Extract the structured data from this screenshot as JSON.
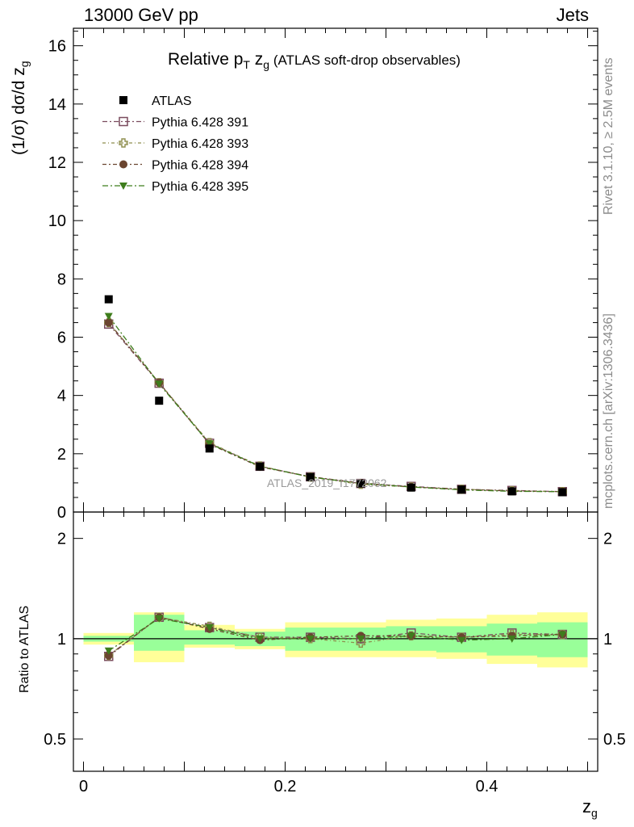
{
  "header": {
    "left": "13000 GeV pp",
    "right": "Jets"
  },
  "plot_title": {
    "main": "Relative p",
    "sub_T": "T",
    "mid": " z",
    "sub_g": "g",
    "paren": " (ATLAS soft-drop observables)"
  },
  "watermark": "ATLAS_2019_I1772062",
  "side_text": {
    "rivet": "Rivet 3.1.10, ≥ 2.5M events",
    "mcplots": "mcplots.cern.ch [arXiv:1306.3436]"
  },
  "ylabel_main": {
    "pre": "(1/σ) dσ/d z",
    "sub": "g"
  },
  "ylabel_ratio": "Ratio to ATLAS",
  "xlabel": {
    "main": "z",
    "sub": "g"
  },
  "legend": [
    {
      "name": "ATLAS",
      "marker": "filled-square",
      "color": "#000000"
    },
    {
      "name": "Pythia 6.428 391",
      "marker": "open-square",
      "color": "#7a4b5e"
    },
    {
      "name": "Pythia 6.428 393",
      "marker": "open-cross",
      "color": "#8e8e4e"
    },
    {
      "name": "Pythia 6.428 394",
      "marker": "filled-circle",
      "color": "#6b4530"
    },
    {
      "name": "Pythia 6.428 395",
      "marker": "filled-triangle-down",
      "color": "#3e7d1c"
    }
  ],
  "chart_data": {
    "type": "scatter",
    "x": [
      0.025,
      0.075,
      0.125,
      0.175,
      0.225,
      0.275,
      0.325,
      0.375,
      0.425,
      0.475
    ],
    "bin_edges": [
      0.0,
      0.05,
      0.1,
      0.15,
      0.2,
      0.25,
      0.3,
      0.35,
      0.4,
      0.45,
      0.5
    ],
    "xlim": [
      -0.01,
      0.51
    ],
    "ylim": [
      0,
      16.6
    ],
    "xticks": [
      0,
      0.2,
      0.4
    ],
    "xtick_labels": [
      "0",
      "0.2",
      "0.4"
    ],
    "yticks": [
      0,
      2,
      4,
      6,
      8,
      10,
      12,
      14,
      16
    ],
    "ytick_labels": [
      "0",
      "2",
      "4",
      "6",
      "8",
      "10",
      "12",
      "14",
      "16"
    ],
    "series": [
      {
        "name": "ATLAS",
        "values": [
          7.3,
          3.82,
          2.18,
          1.56,
          1.2,
          0.98,
          0.84,
          0.77,
          0.71,
          0.68
        ]
      },
      {
        "name": "Pythia 6.428 391",
        "values": [
          6.45,
          4.42,
          2.36,
          1.57,
          1.21,
          0.98,
          0.88,
          0.78,
          0.74,
          0.7
        ]
      },
      {
        "name": "Pythia 6.428 393",
        "values": [
          6.5,
          4.44,
          2.38,
          1.58,
          1.2,
          0.95,
          0.86,
          0.78,
          0.73,
          0.7
        ]
      },
      {
        "name": "Pythia 6.428 394",
        "values": [
          6.5,
          4.44,
          2.33,
          1.55,
          1.21,
          1.0,
          0.86,
          0.78,
          0.72,
          0.7
        ]
      },
      {
        "name": "Pythia 6.428 395",
        "values": [
          6.72,
          4.4,
          2.35,
          1.57,
          1.2,
          0.98,
          0.86,
          0.76,
          0.71,
          0.7
        ]
      }
    ],
    "ratio": {
      "ylabel": "Ratio to ATLAS",
      "ylim": [
        0.4,
        2.4
      ],
      "yticks": [
        0.5,
        1,
        2
      ],
      "ytick_labels": [
        "0.5",
        "1",
        "2"
      ],
      "band_stat": [
        [
          0.98,
          1.02
        ],
        [
          0.92,
          1.18
        ],
        [
          0.96,
          1.06
        ],
        [
          0.95,
          1.05
        ],
        [
          0.92,
          1.08
        ],
        [
          0.92,
          1.08
        ],
        [
          0.92,
          1.09
        ],
        [
          0.91,
          1.09
        ],
        [
          0.89,
          1.11
        ],
        [
          0.88,
          1.12
        ]
      ],
      "band_total": [
        [
          0.96,
          1.04
        ],
        [
          0.85,
          1.2
        ],
        [
          0.94,
          1.1
        ],
        [
          0.93,
          1.07
        ],
        [
          0.88,
          1.12
        ],
        [
          0.88,
          1.12
        ],
        [
          0.88,
          1.14
        ],
        [
          0.87,
          1.15
        ],
        [
          0.84,
          1.18
        ],
        [
          0.82,
          1.2
        ]
      ],
      "series": [
        {
          "name": "Pythia 6.428 391",
          "values": [
            0.885,
            1.16,
            1.08,
            1.01,
            1.01,
            1.0,
            1.04,
            1.01,
            1.04,
            1.03
          ]
        },
        {
          "name": "Pythia 6.428 393",
          "values": [
            0.89,
            1.16,
            1.09,
            1.01,
            1.0,
            0.97,
            1.02,
            1.01,
            1.03,
            1.03
          ]
        },
        {
          "name": "Pythia 6.428 394",
          "values": [
            0.89,
            1.16,
            1.07,
            0.99,
            1.01,
            1.02,
            1.02,
            1.01,
            1.02,
            1.03
          ]
        },
        {
          "name": "Pythia 6.428 395",
          "values": [
            0.92,
            1.15,
            1.08,
            1.0,
            1.0,
            1.0,
            1.02,
            0.99,
            1.0,
            1.03
          ]
        }
      ]
    }
  }
}
